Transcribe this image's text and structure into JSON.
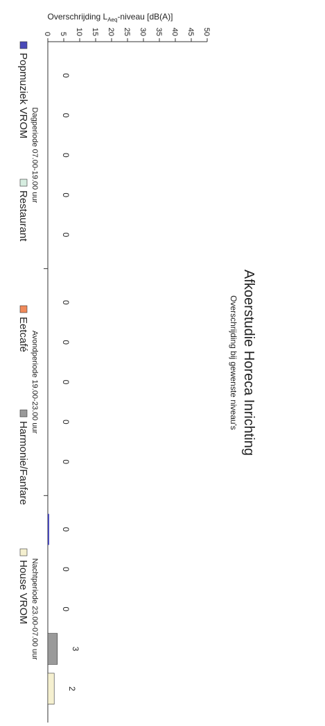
{
  "chart_data": {
    "type": "bar",
    "orientation": "rotated-90-clockwise",
    "title": "Afkoerstudie Horeca Inrichting",
    "subtitle": "Overschrijding bij gewenste niveau's",
    "ylabel": "Overschrijding L",
    "ylabel_sub": "Aeq",
    "ylabel_rest": "-niveau [dB(A)]",
    "ylim": [
      0,
      50
    ],
    "yticks": [
      "0",
      "5",
      "10",
      "15",
      "20",
      "25",
      "30",
      "35",
      "40",
      "45",
      "50"
    ],
    "periods": [
      "Dagperiode 07.00-19.00 uur",
      "Avondperiode 19.00-23.00 uur",
      "Nachtperiode 23.00-07.00 uur"
    ],
    "series": [
      {
        "name": "Popmuziek VROM",
        "color": "#4a4ab8",
        "values": [
          0,
          0,
          0
        ],
        "labels": [
          "0",
          "0",
          "0"
        ]
      },
      {
        "name": "Restaurant",
        "color": "#d6ede0",
        "values": [
          0,
          0,
          0
        ],
        "labels": [
          "0",
          "0",
          "0"
        ]
      },
      {
        "name": "Eetcafé",
        "color": "#f08a5a",
        "values": [
          0,
          0,
          0
        ],
        "labels": [
          "0",
          "0",
          "0"
        ]
      },
      {
        "name": "Harmonie/Fanfare",
        "color": "#9a9a9a",
        "values": [
          0,
          0,
          3
        ],
        "labels": [
          "0",
          "0",
          "3"
        ]
      },
      {
        "name": "House VROM",
        "color": "#f5f0d0",
        "values": [
          0,
          0,
          2
        ],
        "labels": [
          "0",
          "0",
          "2"
        ]
      }
    ],
    "legend": "bottom",
    "grid": false
  }
}
